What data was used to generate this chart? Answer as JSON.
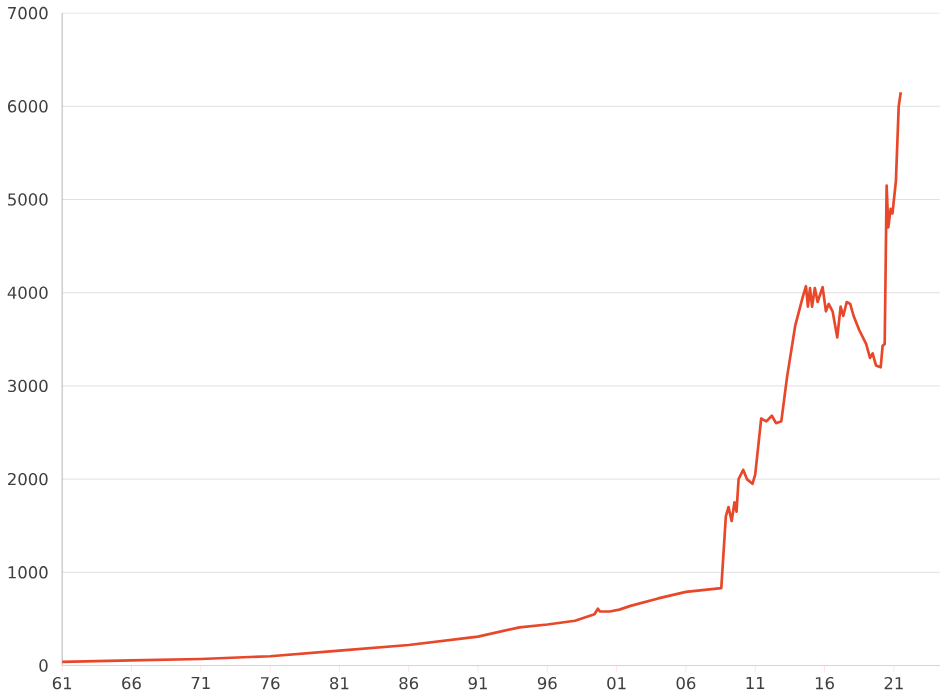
{
  "chart_data": {
    "type": "line",
    "x": [
      1961,
      1966,
      1971,
      1976,
      1981,
      1986,
      1991,
      1994,
      1996,
      1998,
      1999.4,
      1999.65,
      1999.8,
      2000.5,
      2001.2,
      2002,
      2004,
      2006,
      2008.55,
      2008.88,
      2009.07,
      2009.3,
      2009.5,
      2009.65,
      2009.8,
      2010.13,
      2010.4,
      2010.8,
      2011.0,
      2011.43,
      2011.8,
      2012.2,
      2012.5,
      2012.88,
      2013.3,
      2013.89,
      2014.42,
      2014.66,
      2014.8,
      2014.95,
      2015.1,
      2015.3,
      2015.5,
      2015.86,
      2016.1,
      2016.3,
      2016.58,
      2016.92,
      2017.16,
      2017.35,
      2017.6,
      2017.85,
      2018.1,
      2018.5,
      2019.0,
      2019.28,
      2019.47,
      2019.71,
      2020.05,
      2020.19,
      2020.34,
      2020.48,
      2020.6,
      2020.77,
      2020.9,
      2021.15,
      2021.35,
      2021.5
    ],
    "values": [
      40,
      55,
      70,
      100,
      160,
      220,
      310,
      410,
      440,
      480,
      550,
      610,
      580,
      580,
      600,
      640,
      720,
      790,
      830,
      1600,
      1700,
      1550,
      1750,
      1650,
      2000,
      2100,
      2000,
      1950,
      2050,
      2650,
      2620,
      2680,
      2600,
      2620,
      3100,
      3650,
      3950,
      4070,
      3850,
      4050,
      3850,
      4050,
      3900,
      4060,
      3800,
      3880,
      3800,
      3520,
      3850,
      3750,
      3900,
      3880,
      3750,
      3600,
      3450,
      3300,
      3350,
      3220,
      3200,
      3430,
      3450,
      5150,
      4700,
      4900,
      4850,
      5200,
      6000,
      6150
    ],
    "color": "#e8472a",
    "xlim": [
      1961,
      2024.3
    ],
    "ylim": [
      0,
      7000
    ],
    "xticks": [
      {
        "value": 1961,
        "label": "61"
      },
      {
        "value": 1966,
        "label": "66"
      },
      {
        "value": 1971,
        "label": "71"
      },
      {
        "value": 1976,
        "label": "76"
      },
      {
        "value": 1981,
        "label": "81"
      },
      {
        "value": 1986,
        "label": "86"
      },
      {
        "value": 1991,
        "label": "91"
      },
      {
        "value": 1996,
        "label": "96"
      },
      {
        "value": 2001,
        "label": "01"
      },
      {
        "value": 2006,
        "label": "06"
      },
      {
        "value": 2011,
        "label": "11"
      },
      {
        "value": 2016,
        "label": "16"
      },
      {
        "value": 2021,
        "label": "21"
      }
    ],
    "yticks": [
      0,
      1000,
      2000,
      3000,
      4000,
      5000,
      6000,
      7000
    ],
    "grid": "y"
  }
}
